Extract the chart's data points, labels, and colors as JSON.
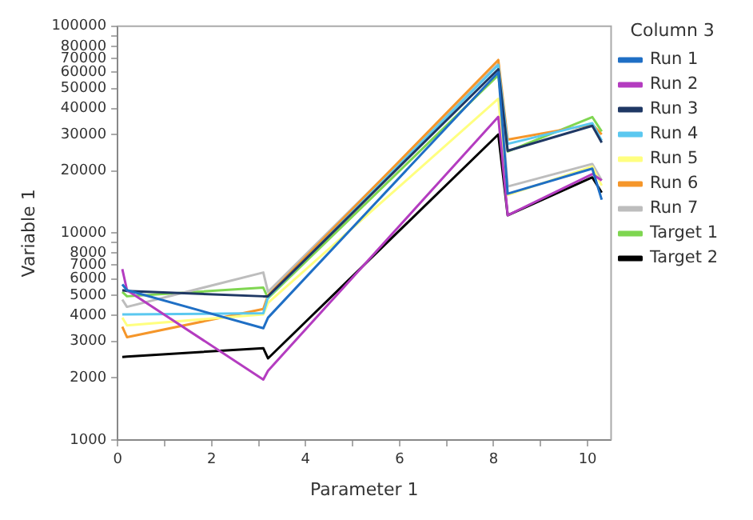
{
  "chart_data": {
    "type": "line",
    "xlabel": "Parameter 1",
    "ylabel": "Variable 1",
    "legend_title": "Column 3",
    "legend": "right",
    "grid": false,
    "marker": "none",
    "line_style": "solid",
    "log": "y",
    "x": [
      0.1,
      0.2,
      3.1,
      3.2,
      8.1,
      8.3,
      10.1,
      10.3
    ],
    "xlim": [
      0,
      10.5
    ],
    "xticks": [
      0,
      {
        "value": 1,
        "label": null
      },
      2,
      {
        "value": 3,
        "label": null
      },
      4,
      {
        "value": 5,
        "label": null
      },
      6,
      {
        "value": 7,
        "label": null
      },
      8,
      {
        "value": 9,
        "label": null
      },
      10
    ],
    "ylim": [
      1000,
      100000
    ],
    "yticks": [
      1000,
      2000,
      3000,
      4000,
      5000,
      6000,
      7000,
      8000,
      {
        "value": 9000,
        "label": null
      },
      10000,
      20000,
      30000,
      40000,
      50000,
      60000,
      70000,
      80000,
      {
        "value": 90000,
        "label": null
      },
      100000
    ],
    "series": [
      {
        "name": "Run 1",
        "color": "#1f6fc5",
        "values": [
          5650,
          5300,
          3470,
          3900,
          60000,
          15500,
          20500,
          14500
        ]
      },
      {
        "name": "Run 2",
        "color": "#b43cc0",
        "values": [
          6700,
          5300,
          1960,
          2160,
          36500,
          12200,
          19300,
          18000
        ]
      },
      {
        "name": "Run 3",
        "color": "#1f3864",
        "values": [
          5300,
          5250,
          4950,
          4950,
          62000,
          25000,
          33000,
          27400
        ]
      },
      {
        "name": "Run 4",
        "color": "#5bc8f0",
        "values": [
          4050,
          4050,
          4100,
          4900,
          65000,
          27000,
          34000,
          28000
        ]
      },
      {
        "name": "Run 5",
        "color": "#ffff80",
        "values": [
          3900,
          3580,
          4050,
          4600,
          44600,
          15300,
          21000,
          17000
        ]
      },
      {
        "name": "Run 6",
        "color": "#f5962a",
        "values": [
          3530,
          3140,
          4300,
          5000,
          68700,
          28300,
          33500,
          30000
        ]
      },
      {
        "name": "Run 7",
        "color": "#bdbdbd",
        "values": [
          4770,
          4400,
          6450,
          5200,
          66000,
          16800,
          21600,
          18000
        ]
      },
      {
        "name": "Target 1",
        "color": "#7fd651",
        "values": [
          5200,
          4950,
          5450,
          4850,
          58000,
          24800,
          36400,
          31000
        ]
      },
      {
        "name": "Target 2",
        "color": "#000000",
        "values": [
          2520,
          2530,
          2780,
          2480,
          30000,
          12200,
          18600,
          15700
        ]
      }
    ]
  }
}
